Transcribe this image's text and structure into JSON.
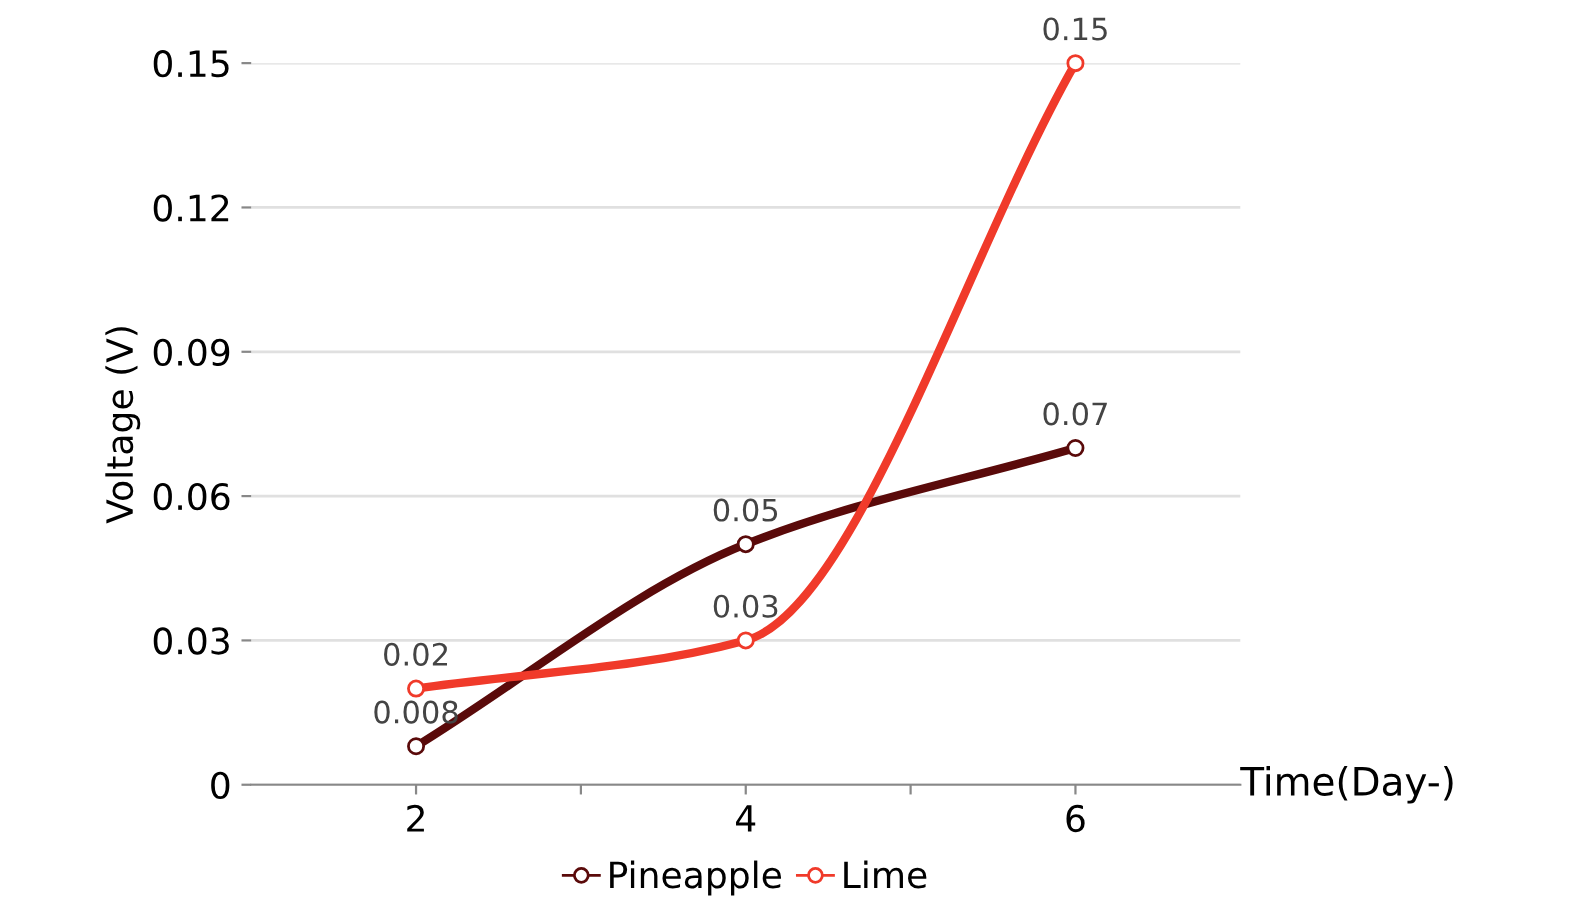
{
  "chart_data": {
    "type": "line",
    "xlabel": "Time(Day-)",
    "ylabel": "Voltage (V)",
    "x": [
      2,
      4,
      6
    ],
    "series": [
      {
        "name": "Pineapple",
        "color": "#5a0a0a",
        "values": [
          0.008,
          0.05,
          0.07
        ]
      },
      {
        "name": "Lime",
        "color": "#f03a2a",
        "values": [
          0.02,
          0.03,
          0.15
        ]
      }
    ],
    "xlim": [
      1,
      7
    ],
    "xticks": [
      2,
      {
        "value": 3,
        "label": null
      },
      4,
      {
        "value": 5,
        "label": null
      },
      6
    ],
    "ylim": [
      0,
      0.15
    ],
    "yticks": [
      0,
      0.03,
      0.06,
      0.09,
      0.12,
      0.15
    ],
    "grid": "y",
    "legend": "bottom",
    "marker": "circle",
    "line_style": "solid",
    "data_labels": true
  }
}
